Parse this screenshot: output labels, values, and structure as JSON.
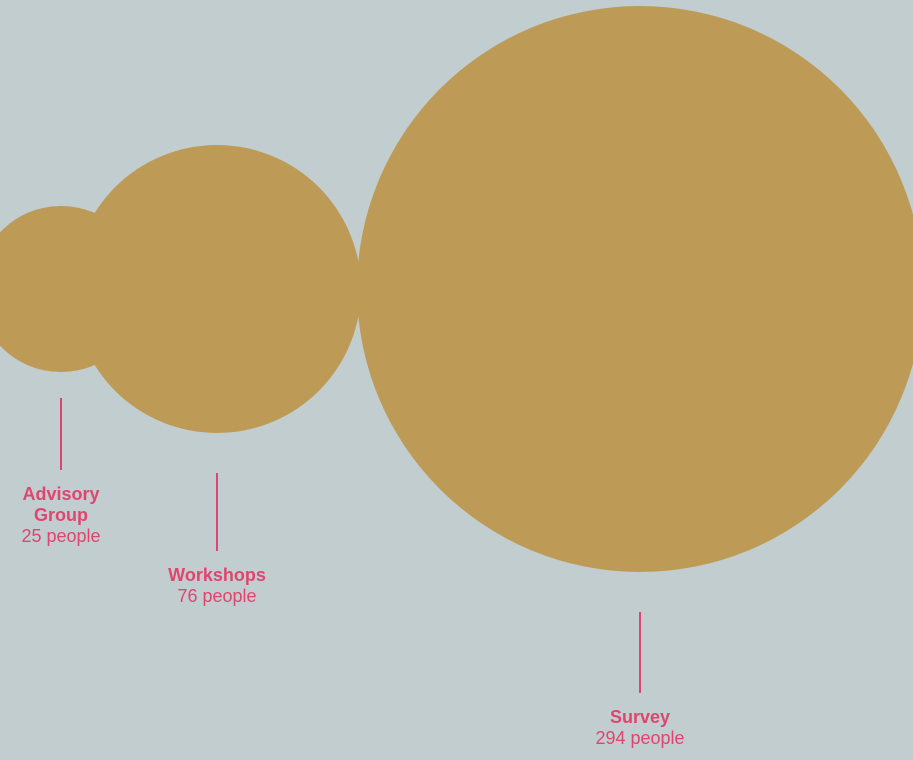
{
  "colors": {
    "background": "#c1cdcf",
    "bubble": "#bd9b57",
    "accent": "#e0456f"
  },
  "chart_data": {
    "type": "bubble",
    "title": "",
    "unit": "people",
    "series": [
      {
        "name": "Advisory Group",
        "value": 25,
        "value_label": "25 people"
      },
      {
        "name": "Workshops",
        "value": 76,
        "value_label": "76 people"
      },
      {
        "name": "Survey",
        "value": 294,
        "value_label": "294 people"
      }
    ]
  }
}
